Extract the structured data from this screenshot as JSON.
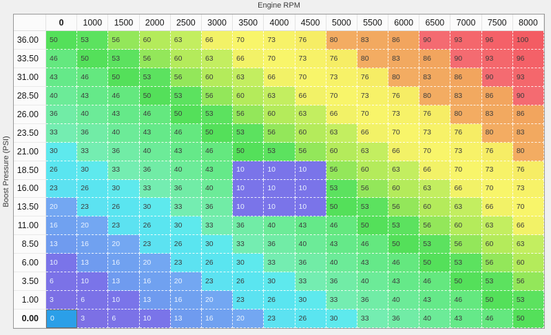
{
  "window": {
    "background": "#f0f0f0"
  },
  "chart_data": {
    "type": "heatmap",
    "title": "",
    "xlabel": "Engine RPM",
    "ylabel": "Boost Pressure (PSI)",
    "x_categories": [
      "0",
      "1000",
      "1500",
      "2000",
      "2500",
      "3000",
      "3500",
      "4000",
      "4500",
      "5000",
      "5500",
      "6000",
      "6500",
      "7000",
      "7500",
      "8000"
    ],
    "y_categories": [
      "36.00",
      "33.50",
      "31.00",
      "28.50",
      "26.00",
      "23.50",
      "21.00",
      "18.50",
      "16.00",
      "13.50",
      "11.00",
      "8.50",
      "6.00",
      "3.50",
      "1.00",
      "0.00"
    ],
    "values": [
      [
        50,
        53,
        56,
        60,
        63,
        66,
        70,
        73,
        76,
        80,
        83,
        86,
        90,
        93,
        96,
        100
      ],
      [
        46,
        50,
        53,
        56,
        60,
        63,
        66,
        70,
        73,
        76,
        80,
        83,
        86,
        90,
        93,
        96
      ],
      [
        43,
        46,
        50,
        53,
        56,
        60,
        63,
        66,
        70,
        73,
        76,
        80,
        83,
        86,
        90,
        93
      ],
      [
        40,
        43,
        46,
        50,
        53,
        56,
        60,
        63,
        66,
        70,
        73,
        76,
        80,
        83,
        86,
        90
      ],
      [
        36,
        40,
        43,
        46,
        50,
        53,
        56,
        60,
        63,
        66,
        70,
        73,
        76,
        80,
        83,
        86
      ],
      [
        33,
        36,
        40,
        43,
        46,
        50,
        53,
        56,
        60,
        63,
        66,
        70,
        73,
        76,
        80,
        83
      ],
      [
        30,
        33,
        36,
        40,
        43,
        46,
        50,
        53,
        56,
        60,
        63,
        66,
        70,
        73,
        76,
        80
      ],
      [
        26,
        30,
        33,
        36,
        40,
        43,
        10,
        10,
        10,
        56,
        60,
        63,
        66,
        70,
        73,
        76
      ],
      [
        23,
        26,
        30,
        33,
        36,
        40,
        10,
        10,
        10,
        53,
        56,
        60,
        63,
        66,
        70,
        73
      ],
      [
        20,
        23,
        26,
        30,
        33,
        36,
        10,
        10,
        10,
        50,
        53,
        56,
        60,
        63,
        66,
        70
      ],
      [
        16,
        20,
        23,
        26,
        30,
        33,
        36,
        40,
        43,
        46,
        50,
        53,
        56,
        60,
        63,
        66
      ],
      [
        13,
        16,
        20,
        23,
        26,
        30,
        33,
        36,
        40,
        43,
        46,
        50,
        53,
        56,
        60,
        63
      ],
      [
        10,
        13,
        16,
        20,
        23,
        26,
        30,
        33,
        36,
        40,
        43,
        46,
        50,
        53,
        56,
        60
      ],
      [
        6,
        10,
        13,
        16,
        20,
        23,
        26,
        30,
        33,
        36,
        40,
        43,
        46,
        50,
        53,
        56
      ],
      [
        3,
        6,
        10,
        13,
        16,
        20,
        23,
        26,
        30,
        33,
        36,
        40,
        43,
        46,
        50,
        53
      ],
      [
        0,
        3,
        6,
        10,
        13,
        16,
        20,
        23,
        26,
        30,
        33,
        36,
        40,
        43,
        46,
        50
      ]
    ],
    "palette": {
      "0": "#2b9fe8",
      "3": "#7c70e5",
      "6": "#7b72e7",
      "10": "#7a74e9",
      "13": "#6f9bef",
      "16": "#70a1f0",
      "20": "#73a7f2",
      "23": "#5ce2f1",
      "26": "#5ae5f0",
      "30": "#5ee9ed",
      "33": "#74edb1",
      "36": "#71eca6",
      "40": "#6ceb98",
      "43": "#65e989",
      "46": "#64e87f",
      "50": "#54e05a",
      "53": "#5ce25f",
      "56": "#93e75a",
      "60": "#b4eb5b",
      "63": "#c3ee60",
      "66": "#f2f267",
      "70": "#f8f56a",
      "73": "#f7f268",
      "76": "#f6ed65",
      "80": "#f3ac62",
      "83": "#f2a960",
      "86": "#f2a55e",
      "90": "#f46b71",
      "93": "#f4676c",
      "96": "#f46168",
      "100": "#f35c63"
    },
    "text_dark": "#3c3c3c",
    "text_light": "#e9f2ff",
    "light_text_max_value": 20,
    "selected": {
      "row": 15,
      "col": 0,
      "row_label": "0.00",
      "col_label": "0",
      "value": 0,
      "fill": "#2b9fe8",
      "border": "#6b6b6b"
    },
    "legend_position": "none",
    "grid": "dashed-white"
  }
}
